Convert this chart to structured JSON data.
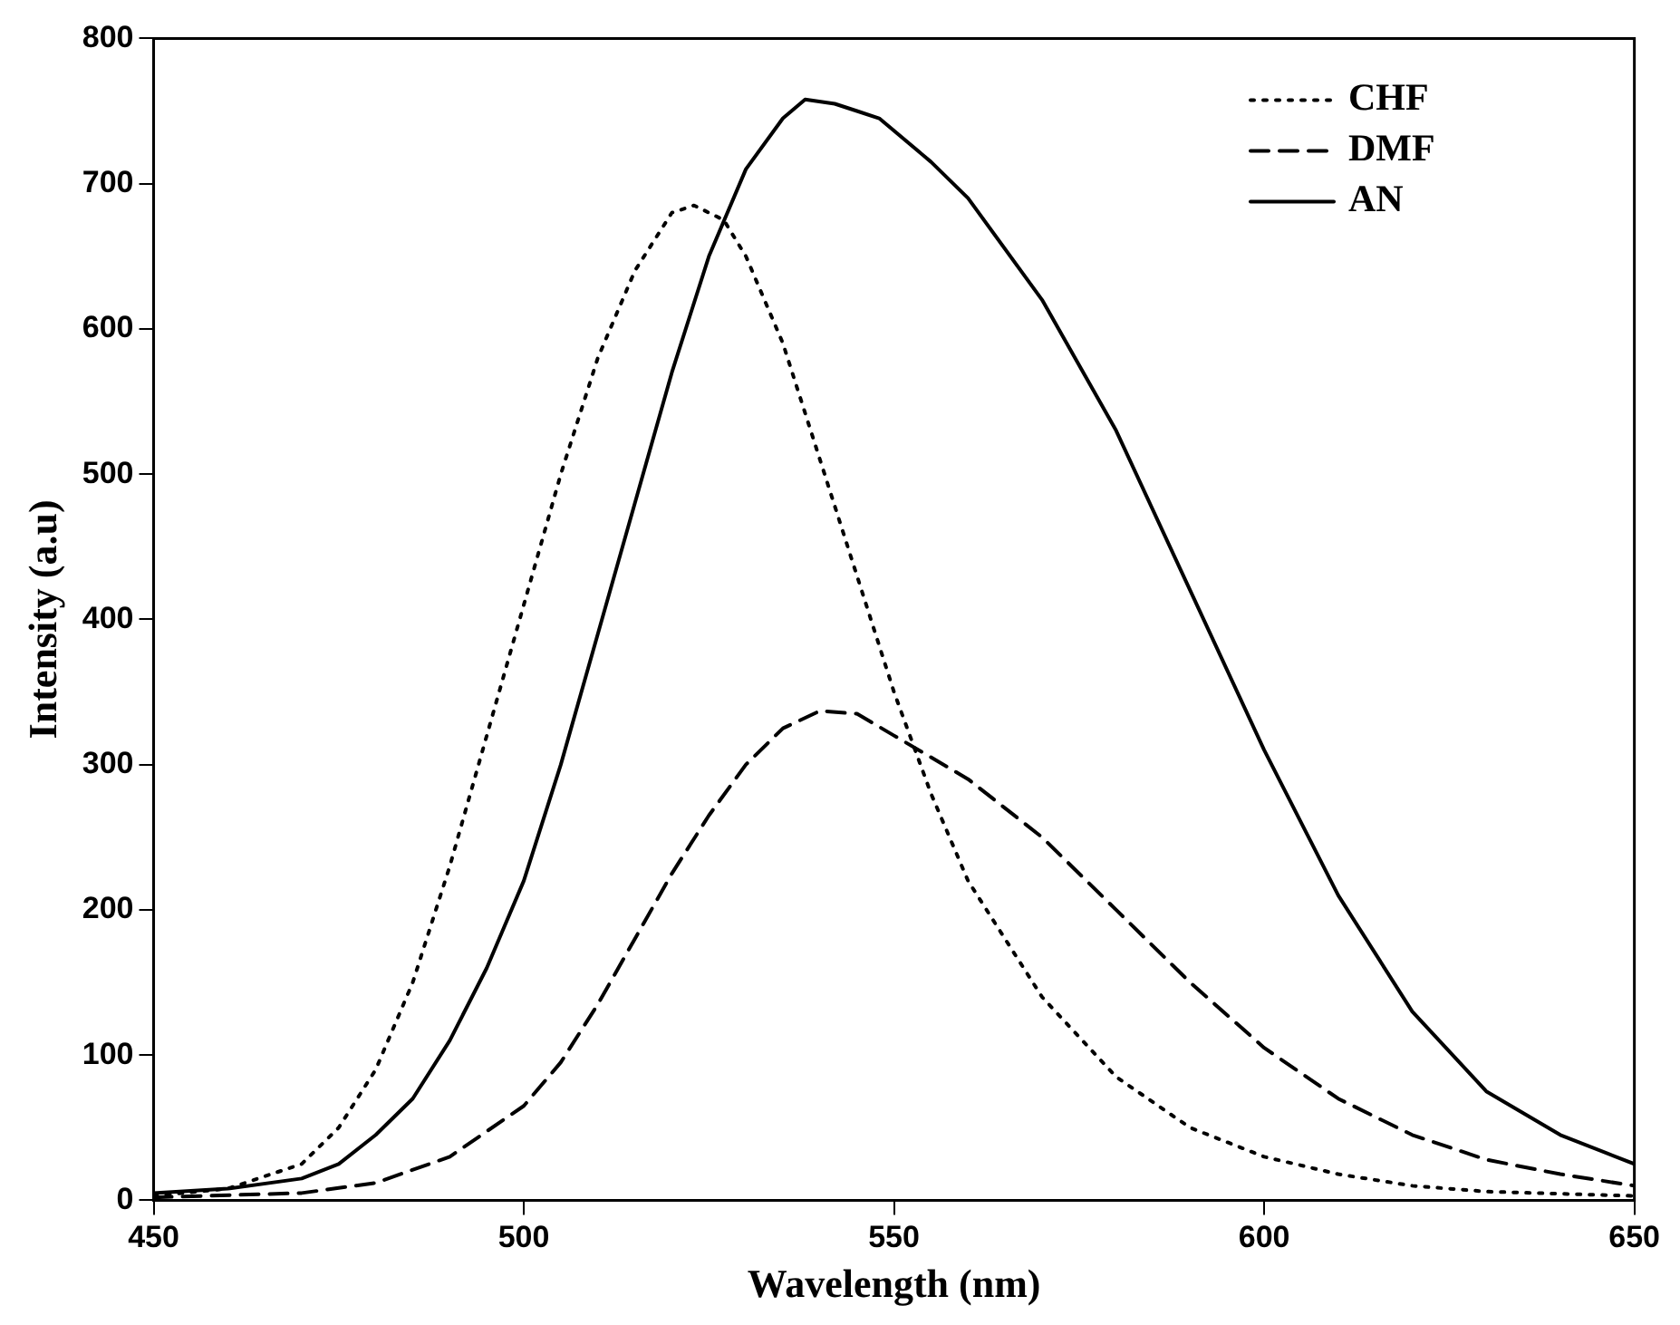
{
  "chart_data": {
    "type": "line",
    "xlabel": "Wavelength (nm)",
    "ylabel": "Intensity (a.u)",
    "xlim": [
      450,
      650
    ],
    "xticks": [
      450,
      500,
      550,
      600,
      650
    ],
    "ylim": [
      0,
      800
    ],
    "yticks": [
      0,
      100,
      200,
      300,
      400,
      500,
      600,
      700,
      800
    ],
    "grid": false,
    "legend": "top right",
    "marker": "none",
    "series": [
      {
        "name": "CHF",
        "color": "#000000",
        "line_style": "dotted",
        "x": [
          450,
          460,
          470,
          475,
          480,
          485,
          490,
          495,
          500,
          505,
          510,
          515,
          520,
          523,
          527,
          530,
          535,
          540,
          545,
          550,
          555,
          560,
          570,
          580,
          590,
          600,
          610,
          620,
          630,
          650
        ],
        "values": [
          3,
          8,
          25,
          50,
          90,
          150,
          230,
          320,
          410,
          500,
          580,
          640,
          680,
          685,
          675,
          650,
          590,
          510,
          430,
          350,
          280,
          220,
          140,
          85,
          50,
          30,
          18,
          10,
          6,
          3
        ]
      },
      {
        "name": "DMF",
        "color": "#000000",
        "line_style": "dashed",
        "x": [
          450,
          470,
          480,
          490,
          500,
          505,
          510,
          515,
          520,
          525,
          530,
          535,
          540,
          545,
          550,
          560,
          570,
          580,
          590,
          600,
          610,
          620,
          630,
          640,
          650
        ],
        "values": [
          2,
          5,
          12,
          30,
          65,
          95,
          135,
          180,
          225,
          265,
          300,
          325,
          337,
          335,
          320,
          290,
          250,
          200,
          150,
          105,
          70,
          45,
          28,
          18,
          10
        ]
      },
      {
        "name": "AN",
        "color": "#000000",
        "line_style": "solid",
        "x": [
          450,
          460,
          470,
          475,
          480,
          485,
          490,
          495,
          500,
          505,
          510,
          515,
          520,
          525,
          530,
          535,
          538,
          542,
          545,
          548,
          555,
          560,
          570,
          580,
          590,
          600,
          610,
          620,
          630,
          640,
          650
        ],
        "values": [
          5,
          8,
          15,
          25,
          45,
          70,
          110,
          160,
          220,
          300,
          390,
          480,
          570,
          650,
          710,
          745,
          758,
          755,
          750,
          745,
          715,
          690,
          620,
          530,
          420,
          310,
          210,
          130,
          75,
          45,
          25
        ]
      }
    ]
  }
}
